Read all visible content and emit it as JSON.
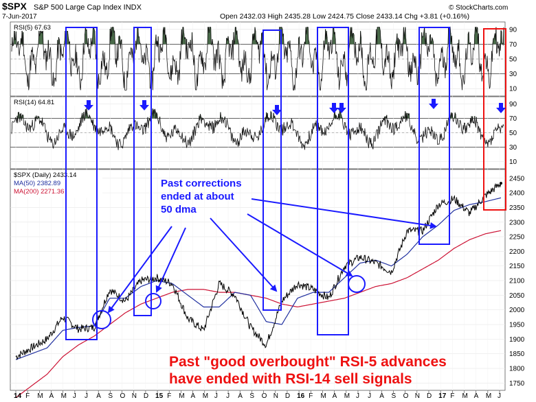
{
  "header": {
    "symbol": "$SPX",
    "name": "S&P 500 Large Cap Index INDX",
    "date": "7-Jun-2017",
    "ohlc": "Open 2432.03  High 2435.28  Low 2424.75  Close 2433.14  Chg +3.81 (+0.16%)",
    "brand": "© StockCharts.com"
  },
  "chart_data": [
    {
      "type": "line",
      "panel": "rsi5",
      "legend": "RSI(5) 67.63",
      "ylim": [
        0,
        100
      ],
      "ticks": [
        "90",
        "70",
        "50",
        "30",
        "10"
      ],
      "levels": [
        70,
        30
      ],
      "last_value": 67.63
    },
    {
      "type": "line",
      "panel": "rsi14",
      "legend": "RSI(14) 64.81",
      "ylim": [
        0,
        100
      ],
      "ticks": [
        "90",
        "70",
        "50",
        "30",
        "10"
      ],
      "levels": [
        70,
        30
      ],
      "last_value": 64.81
    },
    {
      "type": "line",
      "panel": "price",
      "legend_price": "$SPX (Daily) 2433.14",
      "legend_ma50": "MA(50) 2382.89",
      "legend_ma200": "MA(200) 2271.36",
      "ylim": [
        1725,
        2480
      ],
      "ticks": [
        "2450",
        "2400",
        "2350",
        "2300",
        "2250",
        "2200",
        "2150",
        "2100",
        "2050",
        "2000",
        "1950",
        "1900",
        "1850",
        "1800",
        "1750"
      ],
      "x_labels": [
        "14",
        "F",
        "M",
        "A",
        "M",
        "J",
        "J",
        "A",
        "S",
        "O",
        "N",
        "D",
        "15",
        "F",
        "M",
        "A",
        "M",
        "J",
        "J",
        "A",
        "S",
        "O",
        "N",
        "D",
        "16",
        "F",
        "M",
        "A",
        "M",
        "J",
        "J",
        "A",
        "S",
        "O",
        "N",
        "D",
        "17",
        "F",
        "M",
        "A",
        "M",
        "J"
      ],
      "x": [
        "2014-01",
        "2014-03",
        "2014-05",
        "2014-07",
        "2014-08",
        "2014-10",
        "2014-12",
        "2015-02",
        "2015-03",
        "2015-05",
        "2015-07",
        "2015-08",
        "2015-09",
        "2015-11",
        "2015-12",
        "2016-01",
        "2016-02",
        "2016-03",
        "2016-04",
        "2016-06",
        "2016-06",
        "2016-07",
        "2016-08",
        "2016-10",
        "2016-11",
        "2016-12",
        "2017-01",
        "2017-02",
        "2017-03",
        "2017-04",
        "2017-05",
        "2017-06"
      ],
      "series": [
        {
          "name": "$SPX (Daily)",
          "values": [
            1840,
            1870,
            1900,
            1975,
            1935,
            1940,
            2070,
            2030,
            2100,
            2110,
            2090,
            1970,
            1930,
            2090,
            2050,
            1940,
            1880,
            2030,
            2090,
            2070,
            2040,
            2150,
            2180,
            2160,
            2130,
            2270,
            2270,
            2360,
            2380,
            2330,
            2390,
            2433
          ]
        },
        {
          "name": "MA(50)",
          "values": [
            1830,
            1850,
            1870,
            1930,
            1940,
            1945,
            2040,
            2040,
            2080,
            2100,
            2090,
            2050,
            2010,
            2010,
            2060,
            2050,
            1960,
            1950,
            2040,
            2060,
            2060,
            2110,
            2160,
            2170,
            2150,
            2190,
            2250,
            2290,
            2340,
            2360,
            2370,
            2383
          ]
        },
        {
          "name": "MA(200)",
          "values": [
            1700,
            1740,
            1780,
            1840,
            1880,
            1910,
            1950,
            1990,
            2020,
            2040,
            2060,
            2070,
            2070,
            2060,
            2060,
            2050,
            2040,
            2020,
            2010,
            2020,
            2030,
            2040,
            2060,
            2080,
            2090,
            2110,
            2140,
            2170,
            2210,
            2240,
            2260,
            2271
          ]
        }
      ]
    }
  ],
  "annotations": {
    "corrections_line1": "Past corrections",
    "corrections_line2": "ended at about",
    "corrections_line3": "50 dma",
    "bottom_line1": "Past \"good overbought\" RSI-5 advances",
    "bottom_line2": "have ended with RSI-14 sell signals"
  },
  "colors": {
    "price": "#000000",
    "ma50": "#1f2f9f",
    "ma200": "#cc1133",
    "highlight": "#1a1aff",
    "highlight_red": "#ee1111",
    "rsi_fill": "#4a6b4a"
  }
}
